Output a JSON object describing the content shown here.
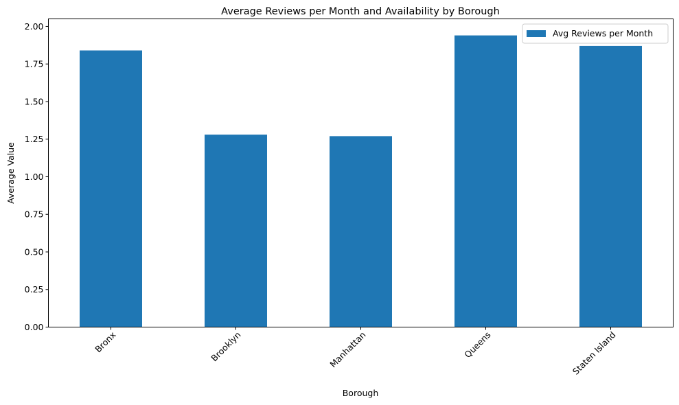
{
  "chart_data": {
    "type": "bar",
    "title": "Average Reviews per Month and Availability by Borough",
    "xlabel": "Borough",
    "ylabel": "Average Value",
    "categories": [
      "Bronx",
      "Brooklyn",
      "Manhattan",
      "Queens",
      "Staten Island"
    ],
    "series": [
      {
        "name": "Avg Reviews per Month",
        "values": [
          1.84,
          1.28,
          1.27,
          1.94,
          1.87
        ],
        "color": "#1f77b4"
      }
    ],
    "ylim": [
      0,
      2.05
    ],
    "yticks": [
      "0.00",
      "0.25",
      "0.50",
      "0.75",
      "1.00",
      "1.25",
      "1.50",
      "1.75",
      "2.00"
    ],
    "grid": false,
    "legend_position": "top-right"
  }
}
